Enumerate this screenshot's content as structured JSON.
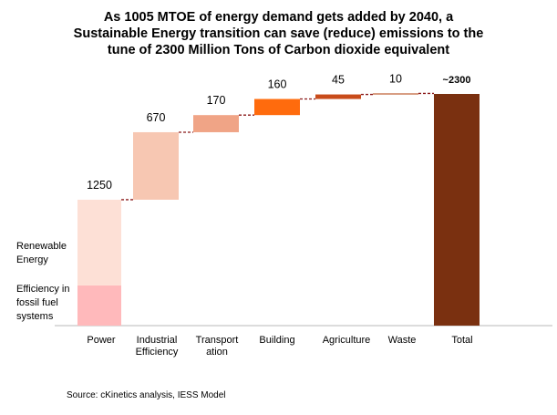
{
  "title_lines": [
    "As 1005 MTOE of energy demand gets added by 2040, a",
    "Sustainable Energy transition can save (reduce) emissions to the",
    "tune of 2300 Million Tons  of Carbon dioxide equivalent"
  ],
  "source": "Source: cKinetics analysis, IESS Model",
  "chart_data": {
    "type": "bar",
    "subtype": "waterfall",
    "title": "As 1005 MTOE of energy demand gets added by 2040, a Sustainable Energy transition can save (reduce) emissions to the tune of 2300 Million Tons  of Carbon dioxide equivalent",
    "xlabel": "",
    "ylabel": "",
    "ylim": [
      0,
      2300
    ],
    "grid": false,
    "categories": [
      [
        "Power"
      ],
      [
        "Industrial",
        "Efficiency"
      ],
      [
        "Transport",
        "ation"
      ],
      [
        "Building"
      ],
      [
        "Agriculture"
      ],
      [
        "Waste"
      ],
      [
        "Total"
      ]
    ],
    "values": [
      1250,
      670,
      170,
      160,
      45,
      10,
      2300
    ],
    "value_labels": [
      "1250",
      "670",
      "170",
      "160",
      "45",
      "10",
      "~2300"
    ],
    "power_breakdown": [
      {
        "name": [
          "Efficiency in",
          "fossil fuel",
          "systems"
        ],
        "value": 400,
        "color": "#ffb9bb"
      },
      {
        "name": [
          "Renewable",
          "Energy"
        ],
        "value": 850,
        "color": "#fde0d6"
      }
    ],
    "colors": [
      "#fde0d6",
      "#f7c7b2",
      "#f0a486",
      "#ff6b0d",
      "#c84b1a",
      "#b84f22",
      "#7a3010"
    ],
    "connector_color": "#8b1a1a"
  }
}
